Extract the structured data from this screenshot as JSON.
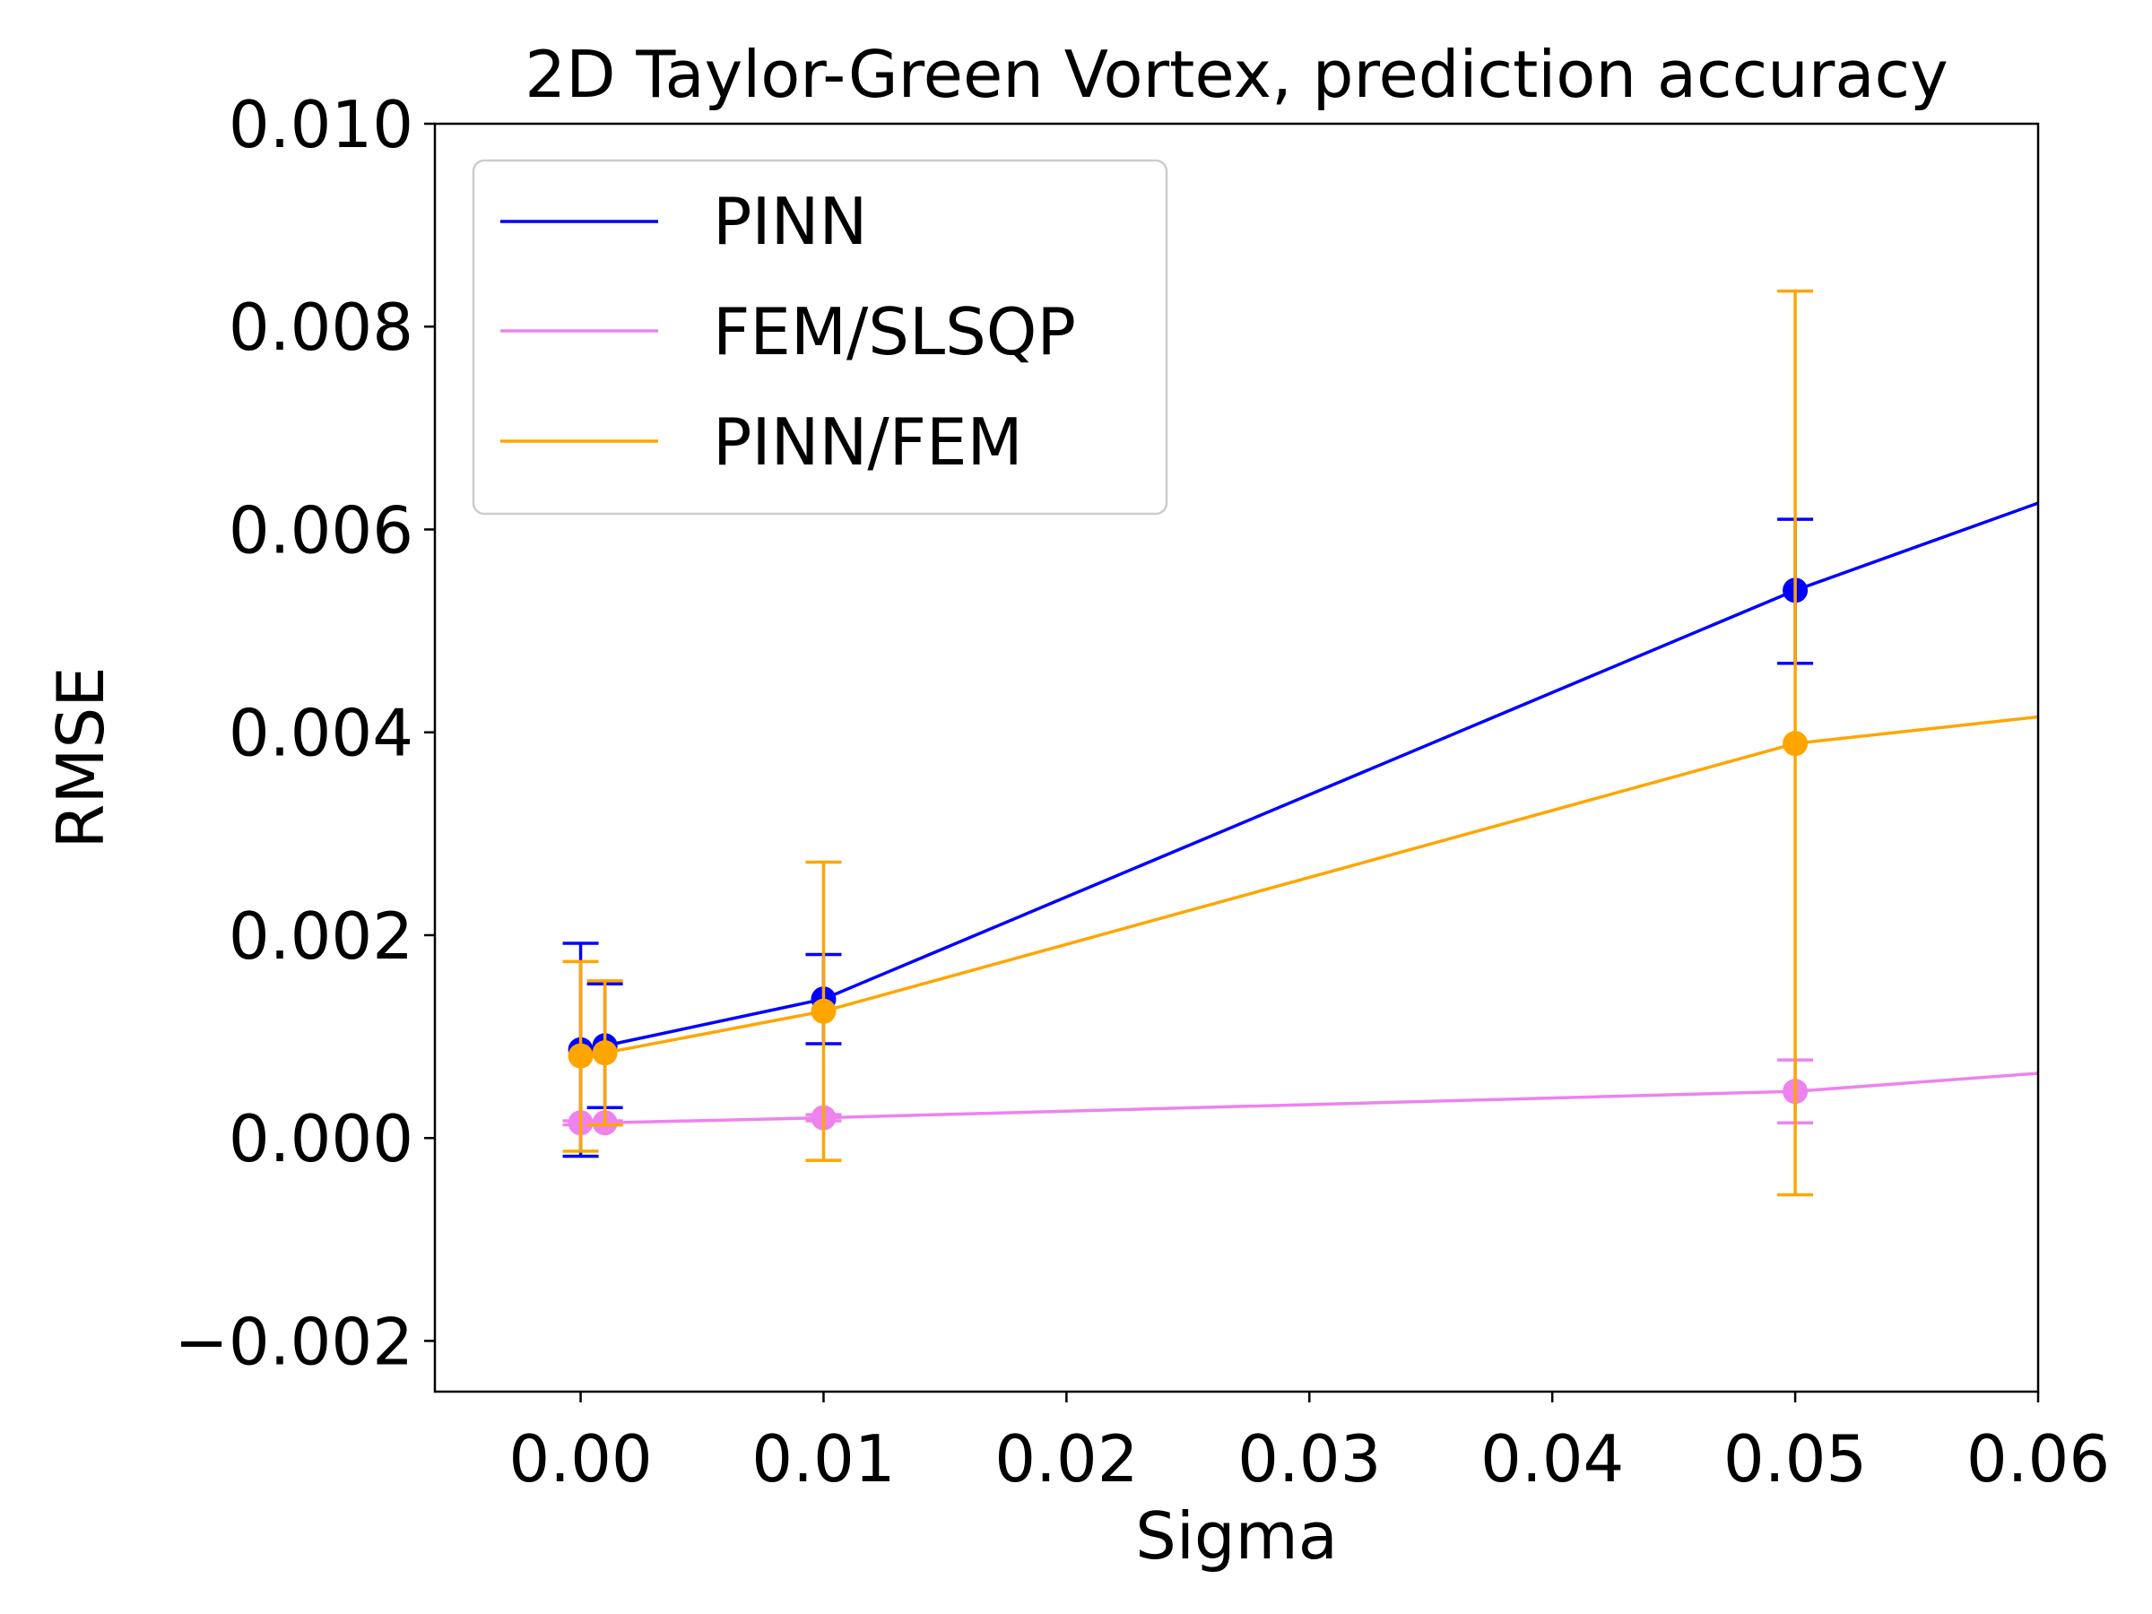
{
  "chart_data": {
    "type": "line",
    "title": "2D Taylor-Green Vortex, prediction accuracy",
    "xlabel": "Sigma",
    "ylabel": "RMSE",
    "xlim": [
      -0.006,
      0.06
    ],
    "ylim": [
      -0.0025,
      0.01
    ],
    "xticks": [
      0.0,
      0.01,
      0.02,
      0.03,
      0.04,
      0.05,
      0.06
    ],
    "xtick_labels": [
      "0.00",
      "0.01",
      "0.02",
      "0.03",
      "0.04",
      "0.05",
      "0.06"
    ],
    "yticks": [
      -0.002,
      0.0,
      0.002,
      0.004,
      0.006,
      0.008,
      0.01
    ],
    "ytick_labels": [
      "−0.002",
      "0.000",
      "0.002",
      "0.004",
      "0.006",
      "0.008",
      "0.010"
    ],
    "grid": false,
    "legend_position": "top-left",
    "series": [
      {
        "name": "PINN",
        "color": "#0000ff",
        "x": [
          0.0,
          0.001,
          0.01,
          0.05,
          0.1
        ],
        "y": [
          0.00087,
          0.00091,
          0.00137,
          0.0054,
          0.0097
        ],
        "errorbars": [
          {
            "x": 0.0,
            "lower": -0.00018,
            "upper": 0.00192
          },
          {
            "x": 0.001,
            "lower": 0.0003,
            "upper": 0.00152
          },
          {
            "x": 0.01,
            "lower": 0.00093,
            "upper": 0.00181
          },
          {
            "x": 0.05,
            "lower": 0.00468,
            "upper": 0.0061
          }
        ]
      },
      {
        "name": "FEM/SLSQP",
        "color": "#ee82ee",
        "x": [
          0.0,
          0.001,
          0.01,
          0.05,
          0.1
        ],
        "y": [
          0.00015,
          0.00015,
          0.0002,
          0.00046,
          0.00135
        ],
        "errorbars": [
          {
            "x": 0.0,
            "lower": 0.00013,
            "upper": 0.00017
          },
          {
            "x": 0.001,
            "lower": 0.00013,
            "upper": 0.00017
          },
          {
            "x": 0.01,
            "lower": 0.00017,
            "upper": 0.00023
          },
          {
            "x": 0.05,
            "lower": 0.00015,
            "upper": 0.00077
          }
        ]
      },
      {
        "name": "PINN/FEM",
        "color": "#ffa500",
        "x": [
          0.0,
          0.001,
          0.01,
          0.05,
          0.1
        ],
        "y": [
          0.00081,
          0.00084,
          0.00125,
          0.00389,
          0.0052
        ],
        "errorbars": [
          {
            "x": 0.0,
            "lower": -0.00013,
            "upper": 0.00174
          },
          {
            "x": 0.001,
            "lower": 0.00013,
            "upper": 0.00155
          },
          {
            "x": 0.01,
            "lower": -0.00022,
            "upper": 0.00272
          },
          {
            "x": 0.05,
            "lower": -0.00056,
            "upper": 0.00835
          }
        ]
      }
    ]
  }
}
